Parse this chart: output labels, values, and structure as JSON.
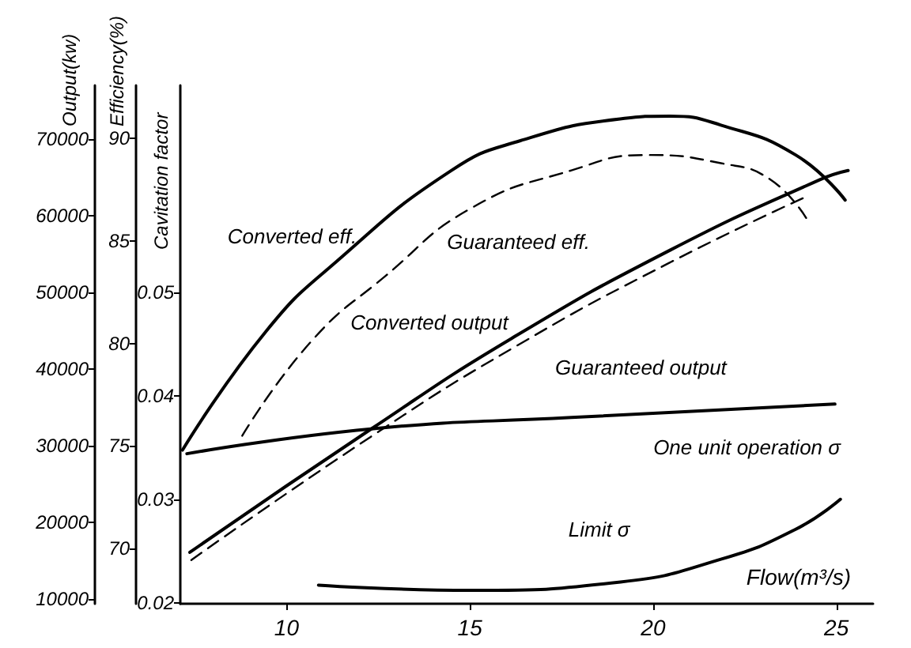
{
  "chart_data": {
    "type": "line",
    "xlabel": "Flow(m³/s)",
    "ylabel": "Output(kw)",
    "y2label": "Efficiency(%)",
    "y3label": "Cavitation factor",
    "xlim": [
      7.1,
      26
    ],
    "xticks": [
      10,
      15,
      20,
      25
    ],
    "ylim": [
      9400,
      77000
    ],
    "yticks": [
      10000,
      20000,
      30000,
      40000,
      50000,
      60000,
      70000
    ],
    "y2lim": [
      67.3,
      92.6
    ],
    "y2ticks": [
      70,
      75,
      80,
      85,
      90
    ],
    "y3lim": [
      0.0199,
      0.07
    ],
    "y3ticks": [
      0.02,
      0.03,
      0.04,
      0.05
    ],
    "grid": false,
    "marker": "none",
    "series": [
      {
        "name": "Converted eff.",
        "color": "#000000",
        "axis": "y2",
        "line_style": "solid",
        "x": [
          7.16,
          9.44,
          11.36,
          14.5,
          16.38,
          19.1,
          20.46,
          21.85,
          23.89,
          25.24
        ],
        "values": [
          74.8,
          80.6,
          84.0,
          88.45,
          89.9,
          90.96,
          91.1,
          90.66,
          89.2,
          87.0
        ]
      },
      {
        "name": "Guaranteed eff.",
        "color": "#000000",
        "axis": "y2",
        "line_style": "dashed",
        "x": [
          8.79,
          10.67,
          12.7,
          15.03,
          17.77,
          19.8,
          21.85,
          23.2,
          24.22
        ],
        "values": [
          75.5,
          80.1,
          83.3,
          86.6,
          88.45,
          89.2,
          88.8,
          88.0,
          86.0
        ]
      },
      {
        "name": "Converted output",
        "color": "#000000",
        "axis": "y",
        "line_style": "solid",
        "x": [
          7.36,
          12.31,
          16.14,
          20.46,
          24.55,
          25.32
        ],
        "values": [
          16100,
          32200,
          44000,
          55500,
          64700,
          65900
        ]
      },
      {
        "name": "Guaranteed output",
        "color": "#000000",
        "axis": "y",
        "line_style": "dashed",
        "x": [
          7.4,
          12.4,
          16.3,
          20.46,
          24.14
        ],
        "values": [
          15100,
          31500,
          43100,
          53900,
          62400
        ]
      },
      {
        "name": "One unit operation σ",
        "color": "#000000",
        "axis": "y3",
        "line_style": "solid",
        "x": [
          7.28,
          12.31,
          17.77,
          24.96
        ],
        "values": [
          0.0344,
          0.0368,
          0.0379,
          0.0392
        ]
      },
      {
        "name": "Limit σ",
        "color": "#000000",
        "axis": "y3",
        "line_style": "solid",
        "x": [
          10.87,
          15.03,
          19.11,
          21.85,
          23.89,
          25.11
        ],
        "values": [
          0.0217,
          0.0212,
          0.022,
          0.0242,
          0.0271,
          0.03
        ]
      }
    ]
  }
}
